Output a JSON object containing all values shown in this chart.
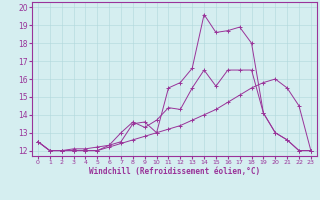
{
  "xlabel": "Windchill (Refroidissement éolien,°C)",
  "background_color": "#d5eef0",
  "line_color": "#993399",
  "xlim": [
    -0.5,
    23.5
  ],
  "ylim": [
    11.7,
    20.3
  ],
  "xticks": [
    0,
    1,
    2,
    3,
    4,
    5,
    6,
    7,
    8,
    9,
    10,
    11,
    12,
    13,
    14,
    15,
    16,
    17,
    18,
    19,
    20,
    21,
    22,
    23
  ],
  "yticks": [
    12,
    13,
    14,
    15,
    16,
    17,
    18,
    19,
    20
  ],
  "series1_x": [
    0,
    1,
    2,
    3,
    4,
    5,
    6,
    7,
    8,
    9,
    10,
    11,
    12,
    13,
    14,
    15,
    16,
    17,
    18,
    19,
    20,
    21,
    22,
    23
  ],
  "series1_y": [
    12.5,
    12.0,
    12.0,
    12.1,
    12.1,
    12.2,
    12.3,
    12.5,
    13.5,
    13.6,
    13.0,
    15.5,
    15.8,
    16.6,
    19.6,
    18.6,
    18.7,
    18.9,
    18.0,
    14.1,
    13.0,
    12.6,
    12.0,
    12.0
  ],
  "series2_x": [
    0,
    1,
    2,
    3,
    4,
    5,
    6,
    7,
    8,
    9,
    10,
    11,
    12,
    13,
    14,
    15,
    16,
    17,
    18,
    19,
    20,
    21,
    22,
    23
  ],
  "series2_y": [
    12.5,
    12.0,
    12.0,
    12.0,
    12.0,
    12.0,
    12.3,
    13.0,
    13.6,
    13.3,
    13.7,
    14.4,
    14.3,
    15.5,
    16.5,
    15.6,
    16.5,
    16.5,
    16.5,
    14.1,
    13.0,
    12.6,
    12.0,
    12.0
  ],
  "series3_x": [
    0,
    1,
    2,
    3,
    4,
    5,
    6,
    7,
    8,
    9,
    10,
    11,
    12,
    13,
    14,
    15,
    16,
    17,
    18,
    19,
    20,
    21,
    22,
    23
  ],
  "series3_y": [
    12.5,
    12.0,
    12.0,
    12.0,
    12.0,
    12.0,
    12.2,
    12.4,
    12.6,
    12.8,
    13.0,
    13.2,
    13.4,
    13.7,
    14.0,
    14.3,
    14.7,
    15.1,
    15.5,
    15.8,
    16.0,
    15.5,
    14.5,
    12.0
  ],
  "tick_fontsize": 5.5,
  "xlabel_fontsize": 5.5,
  "grid_color": "#b0d8dc",
  "spine_color": "#993399"
}
